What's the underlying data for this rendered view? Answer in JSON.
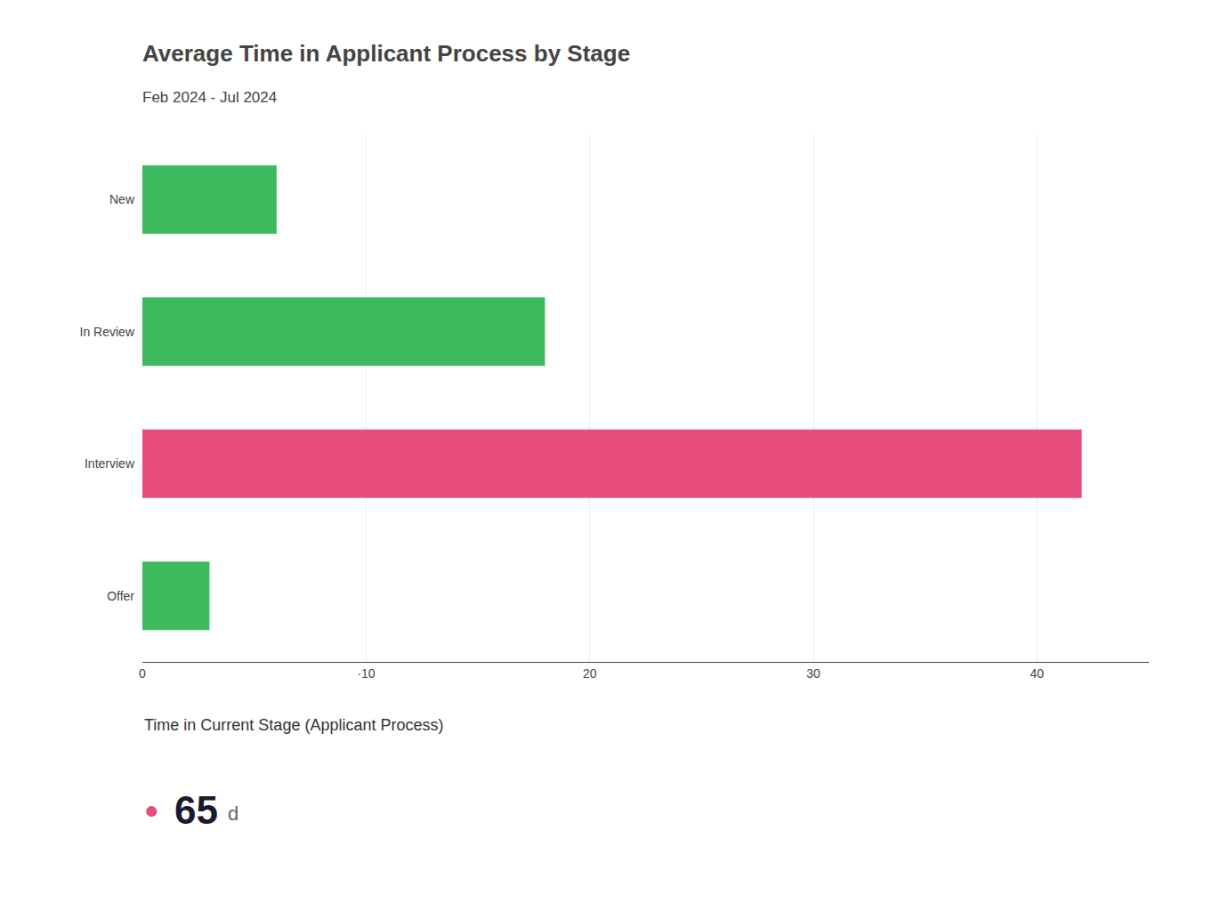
{
  "chart_data": {
    "type": "bar",
    "orientation": "horizontal",
    "title": "Average Time in Applicant Process by Stage",
    "subtitle": "Feb 2024 - Jul 2024",
    "categories": [
      "New",
      "In Review",
      "Interview",
      "Offer"
    ],
    "values": [
      6,
      18,
      42,
      3
    ],
    "colors": [
      "#3dba5e",
      "#3dba5e",
      "#e84c7d",
      "#3dba5e"
    ],
    "xlim": [
      0,
      45
    ],
    "xticks": [
      0,
      {
        "value": 10,
        "label": "·10"
      },
      20,
      30,
      40
    ],
    "grid": true,
    "annotations": [
      {
        "text": "Time in Current Stage (Applicant Process)"
      },
      {
        "text": "●",
        "color": "#e84c7d"
      },
      {
        "text": "65"
      },
      {
        "text": "d"
      }
    ]
  }
}
